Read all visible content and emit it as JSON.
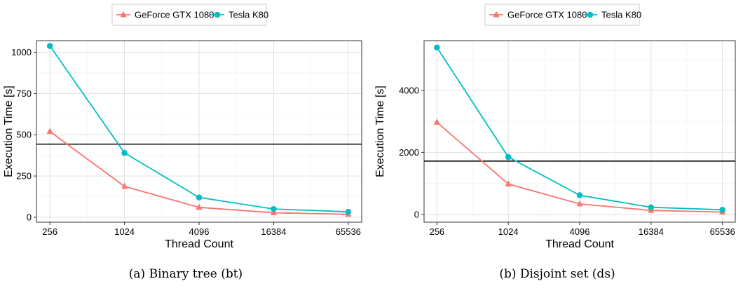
{
  "colors": {
    "gtx": "#F8766D",
    "k80": "#00BFC4",
    "hline": "#000000"
  },
  "captions": [
    "(a) Binary tree (bt)",
    "(b) Disjoint set (ds)"
  ],
  "chart_data": [
    {
      "type": "line",
      "x": [
        256,
        1024,
        4096,
        16384,
        65536
      ],
      "xscale": "log",
      "xlabel": "Thread Count",
      "ylabel": "Execution Time [s]",
      "ylim": [
        -30,
        1070
      ],
      "yticks": [
        0,
        250,
        500,
        750,
        1000
      ],
      "xticks": [
        "256",
        "1024",
        "4096",
        "16384",
        "65536"
      ],
      "grid": true,
      "legend": "top",
      "hline": 443,
      "series": [
        {
          "name": "GeForce GTX 1080",
          "marker": "triangle",
          "color": "#F8766D",
          "values": [
            520,
            187,
            60,
            27,
            18
          ]
        },
        {
          "name": "Tesla K80",
          "marker": "circle",
          "color": "#00BFC4",
          "values": [
            1038,
            390,
            120,
            50,
            33
          ]
        }
      ]
    },
    {
      "type": "line",
      "x": [
        256,
        1024,
        4096,
        16384,
        65536
      ],
      "xscale": "log",
      "xlabel": "Thread Count",
      "ylabel": "Execution Time [s]",
      "ylim": [
        -250,
        5600
      ],
      "yticks": [
        0,
        2000,
        4000
      ],
      "xticks": [
        "256",
        "1024",
        "4096",
        "16384",
        "65536"
      ],
      "grid": true,
      "legend": "top",
      "hline": 1720,
      "series": [
        {
          "name": "GeForce GTX 1080",
          "marker": "triangle",
          "color": "#F8766D",
          "values": [
            2970,
            980,
            340,
            130,
            75
          ]
        },
        {
          "name": "Tesla K80",
          "marker": "circle",
          "color": "#00BFC4",
          "values": [
            5380,
            1850,
            620,
            230,
            150
          ]
        }
      ]
    }
  ]
}
